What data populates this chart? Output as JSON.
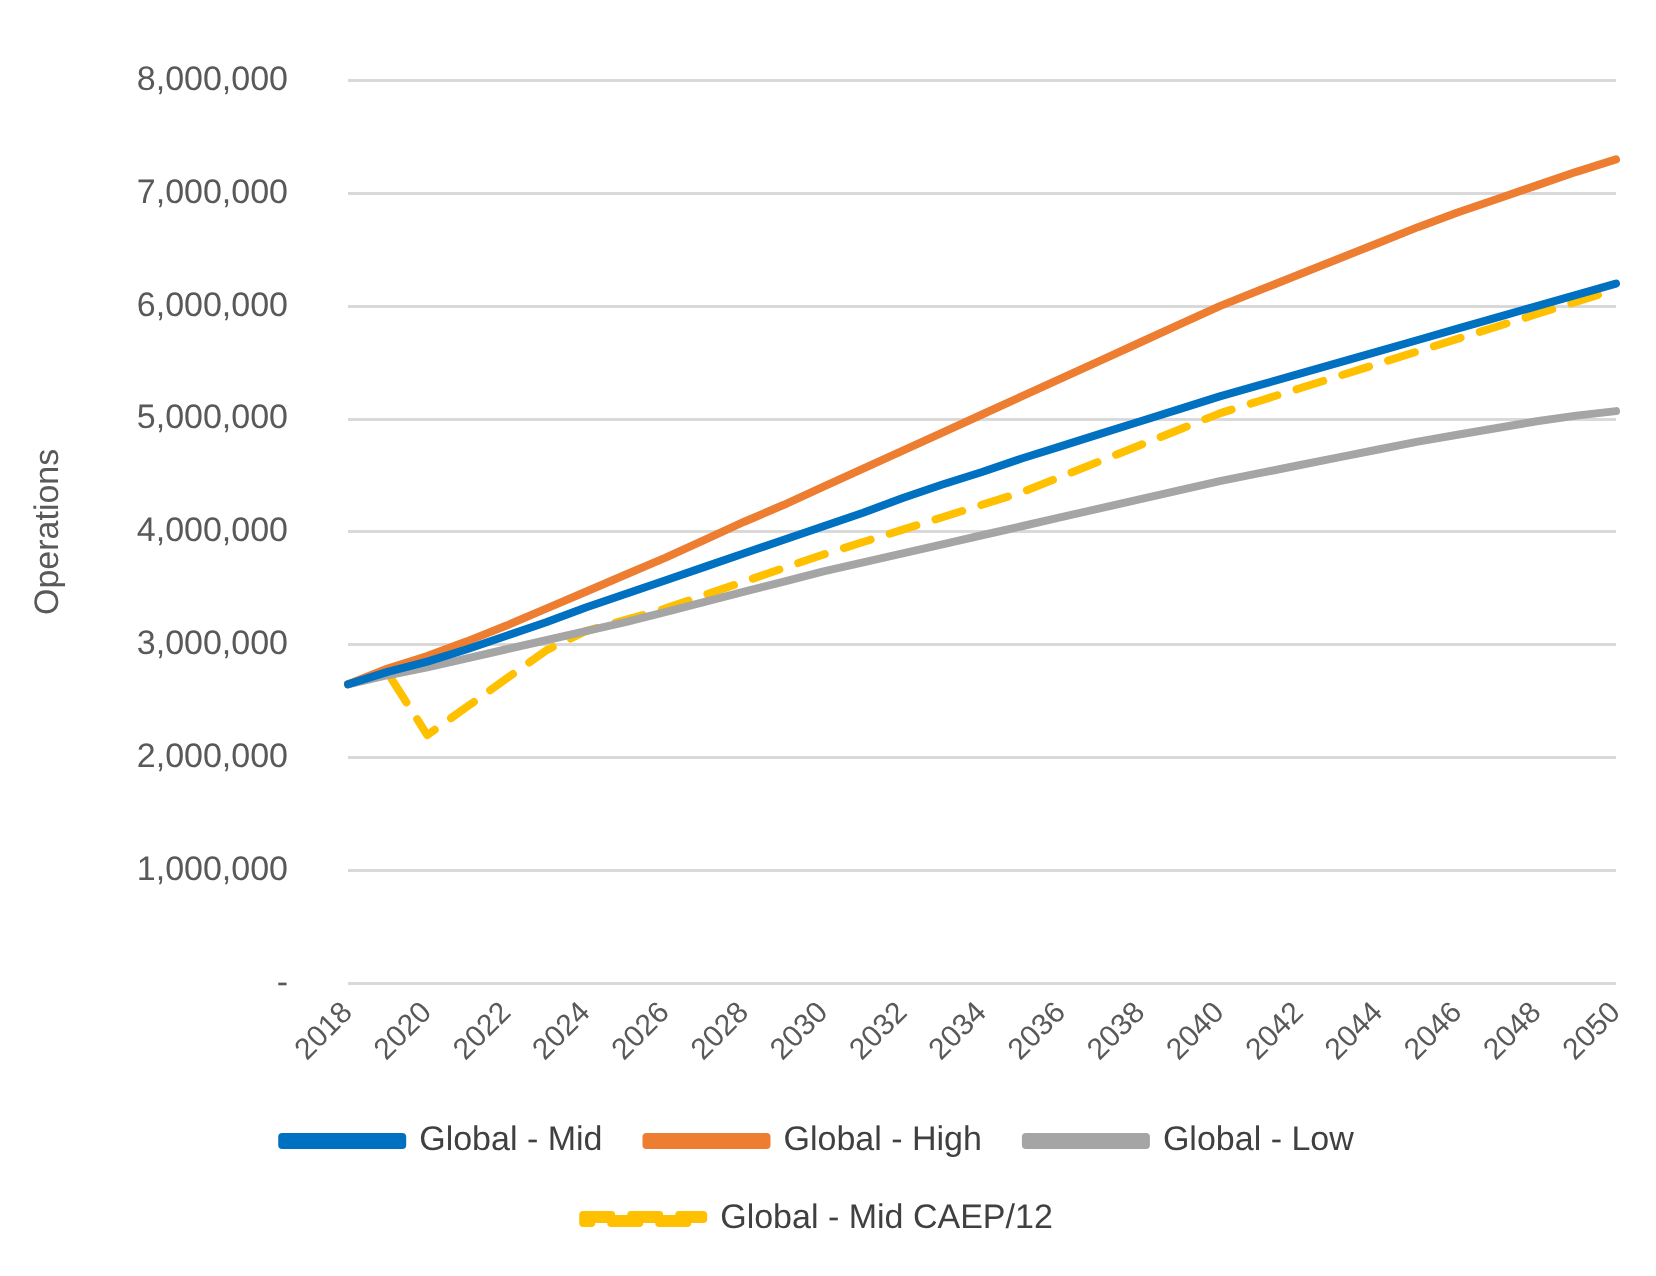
{
  "chart_data": {
    "type": "line",
    "ylabel": "Operations",
    "categories": [
      "2018",
      null,
      "2020",
      null,
      "2022",
      null,
      "2024",
      null,
      "2026",
      null,
      "2028",
      null,
      "2030",
      null,
      "2032",
      null,
      "2034",
      null,
      "2036",
      null,
      "2038",
      null,
      "2040",
      null,
      "2042",
      null,
      "2044",
      null,
      "2046",
      null,
      "2048",
      null,
      "2050"
    ],
    "ylim": [
      0,
      8000000
    ],
    "yticks": [
      {
        "value": 0,
        "label": "-"
      },
      {
        "value": 1000000,
        "label": "1,000,000"
      },
      {
        "value": 2000000,
        "label": "2,000,000"
      },
      {
        "value": 3000000,
        "label": "3,000,000"
      },
      {
        "value": 4000000,
        "label": "4,000,000"
      },
      {
        "value": 5000000,
        "label": "5,000,000"
      },
      {
        "value": 6000000,
        "label": "6,000,000"
      },
      {
        "value": 7000000,
        "label": "7,000,000"
      },
      {
        "value": 8000000,
        "label": "8,000,000"
      }
    ],
    "grid": "y",
    "legend": "bottom",
    "marker": "none",
    "series": [
      {
        "name": "Global - Mid",
        "color": "#0070c0",
        "values": [
          2650000,
          2760000,
          2850000,
          2960000,
          3080000,
          3200000,
          3330000,
          3450000,
          3570000,
          3690000,
          3810000,
          3930000,
          4050000,
          4170000,
          4300000,
          4420000,
          4530000,
          4650000,
          4760000,
          4870000,
          4980000,
          5090000,
          5200000,
          5300000,
          5400000,
          5500000,
          5600000,
          5700000,
          5800000,
          5900000,
          6000000,
          6100000,
          6200000
        ]
      },
      {
        "name": "Global - High",
        "color": "#ed7d31",
        "values": [
          2650000,
          2790000,
          2900000,
          3030000,
          3170000,
          3320000,
          3470000,
          3620000,
          3770000,
          3930000,
          4090000,
          4240000,
          4400000,
          4560000,
          4720000,
          4880000,
          5040000,
          5200000,
          5360000,
          5520000,
          5680000,
          5840000,
          6000000,
          6140000,
          6280000,
          6420000,
          6560000,
          6700000,
          6830000,
          6950000,
          7070000,
          7190000,
          7300000
        ]
      },
      {
        "name": "Global - Low",
        "color": "#a5a5a5",
        "values": [
          2650000,
          2730000,
          2800000,
          2880000,
          2960000,
          3040000,
          3120000,
          3200000,
          3290000,
          3380000,
          3470000,
          3560000,
          3650000,
          3730000,
          3810000,
          3890000,
          3970000,
          4050000,
          4130000,
          4210000,
          4290000,
          4370000,
          4450000,
          4520000,
          4590000,
          4660000,
          4730000,
          4800000,
          4860000,
          4920000,
          4980000,
          5030000,
          5070000
        ]
      },
      {
        "name": "Global - Mid CAEP/12",
        "color": "#ffc000",
        "line_style": "dashed",
        "values": [
          2650000,
          2750000,
          2200000,
          2450000,
          2700000,
          2950000,
          3120000,
          3220000,
          3320000,
          3440000,
          3560000,
          3680000,
          3800000,
          3910000,
          4020000,
          4130000,
          4240000,
          4350000,
          4490000,
          4630000,
          4770000,
          4910000,
          5050000,
          5160000,
          5270000,
          5380000,
          5490000,
          5600000,
          5710000,
          5820000,
          5930000,
          6040000,
          6150000
        ]
      }
    ]
  }
}
